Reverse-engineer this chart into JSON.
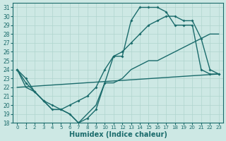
{
  "xlabel": "Humidex (Indice chaleur)",
  "bg_color": "#cde8e4",
  "grid_color": "#afd4ce",
  "line_color": "#1a6b6b",
  "xlim": [
    -0.5,
    23.5
  ],
  "ylim": [
    18,
    31.5
  ],
  "xticks": [
    0,
    1,
    2,
    3,
    4,
    5,
    6,
    7,
    8,
    9,
    10,
    11,
    12,
    13,
    14,
    15,
    16,
    17,
    18,
    19,
    20,
    21,
    22,
    23
  ],
  "yticks": [
    18,
    19,
    20,
    21,
    22,
    23,
    24,
    25,
    26,
    27,
    28,
    29,
    30,
    31
  ],
  "series": [
    {
      "x": [
        0,
        1,
        2,
        3,
        4,
        5,
        6,
        7,
        8,
        9,
        10,
        11,
        12,
        13,
        14,
        15,
        16,
        17,
        18,
        19,
        20,
        21,
        22,
        23
      ],
      "y": [
        24,
        23,
        21.5,
        20.5,
        19.5,
        19.5,
        19,
        18,
        18.5,
        19.5,
        22.5,
        25.5,
        25.5,
        29.5,
        31,
        31,
        31,
        30.5,
        29,
        29,
        29,
        24,
        23.5,
        23.5
      ],
      "marker": true,
      "lw": 1.0
    },
    {
      "x": [
        0,
        23
      ],
      "y": [
        22,
        23.5
      ],
      "marker": false,
      "lw": 1.0
    },
    {
      "x": [
        0,
        1,
        2,
        3,
        4,
        5,
        6,
        7,
        8,
        9,
        10,
        11,
        12,
        13,
        14,
        15,
        16,
        17,
        18,
        19,
        20,
        21,
        22,
        23
      ],
      "y": [
        24,
        22.5,
        21.5,
        20.5,
        20,
        19.5,
        20,
        20.5,
        21,
        22,
        24,
        25.5,
        26,
        27,
        28,
        29,
        29.5,
        30,
        30,
        29.5,
        29.5,
        27.5,
        24,
        23.5
      ],
      "marker": true,
      "lw": 1.0
    },
    {
      "x": [
        0,
        1,
        2,
        3,
        4,
        5,
        6,
        7,
        8,
        9,
        10,
        11,
        12,
        13,
        14,
        15,
        16,
        17,
        18,
        19,
        20,
        21,
        22,
        23
      ],
      "y": [
        24,
        22,
        21.5,
        20.5,
        19.5,
        19.5,
        19,
        18,
        19,
        20,
        22.5,
        22.5,
        23,
        24,
        24.5,
        25,
        25,
        25.5,
        26,
        26.5,
        27,
        27.5,
        28,
        28
      ],
      "marker": false,
      "lw": 1.0
    }
  ]
}
